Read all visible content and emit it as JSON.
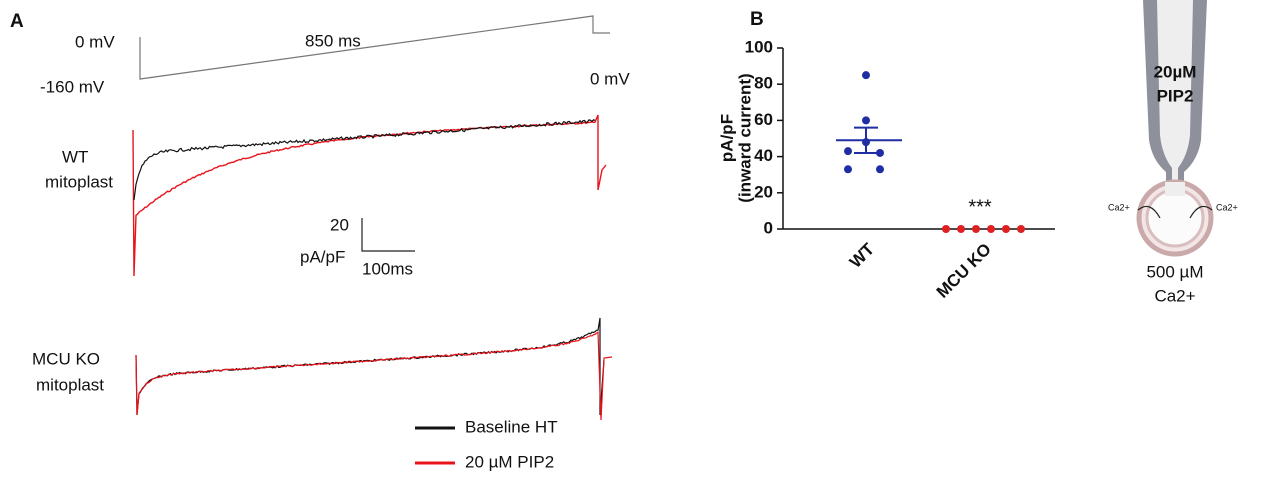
{
  "panel_a": {
    "label": "A",
    "protocol": {
      "hold": "0 mV",
      "start": "-160 mV",
      "duration": "850 ms",
      "end": "0 mV"
    },
    "wt_label": [
      "WT",
      "mitoplast"
    ],
    "ko_label": [
      "MCU KO",
      "mitoplast"
    ],
    "scale_bar": {
      "amplitude": [
        "20",
        "pA/pF"
      ],
      "time": "100ms"
    },
    "legend": [
      {
        "name": "Baseline HT",
        "color": "#111111"
      },
      {
        "name": "20 µM PIP2",
        "color": "#e8141b"
      }
    ]
  },
  "chart_data": {
    "type": "dot",
    "panel_label": "B",
    "y_label": [
      "pA/pF",
      "(inward current)"
    ],
    "categories": [
      "WT",
      "MCU KO"
    ],
    "points": [
      [
        85,
        60,
        48,
        43,
        42,
        33,
        33
      ],
      [
        0,
        0,
        0,
        0,
        0,
        0
      ]
    ],
    "colors": [
      "#1f2fa3",
      "#e02020"
    ],
    "mean": [
      49,
      null
    ],
    "sem": [
      7,
      null
    ],
    "annotation": "***",
    "ylim": [
      0,
      100
    ],
    "yticks": [
      0,
      20,
      40,
      60,
      80,
      100
    ]
  },
  "schematic": {
    "pipette_label": [
      "20µM",
      "PIP2"
    ],
    "ion_left": "Ca2+",
    "ion_right": "Ca2+",
    "bath_label": [
      "500 µM",
      "Ca2+"
    ]
  }
}
